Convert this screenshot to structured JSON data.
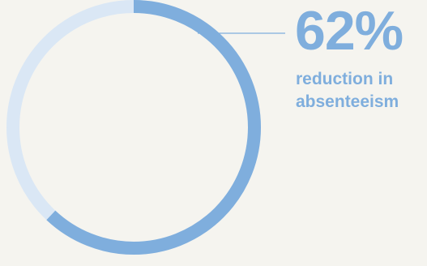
{
  "chart_data": {
    "type": "pie",
    "variant": "donut",
    "value_percent": 62,
    "colors": {
      "filled": "#7faedd",
      "remaining": "#dae7f5",
      "leader_line": "#7faedd",
      "background": "#f5f4ef"
    },
    "value_label": "62%",
    "description_label": "reduction in absenteeism"
  }
}
